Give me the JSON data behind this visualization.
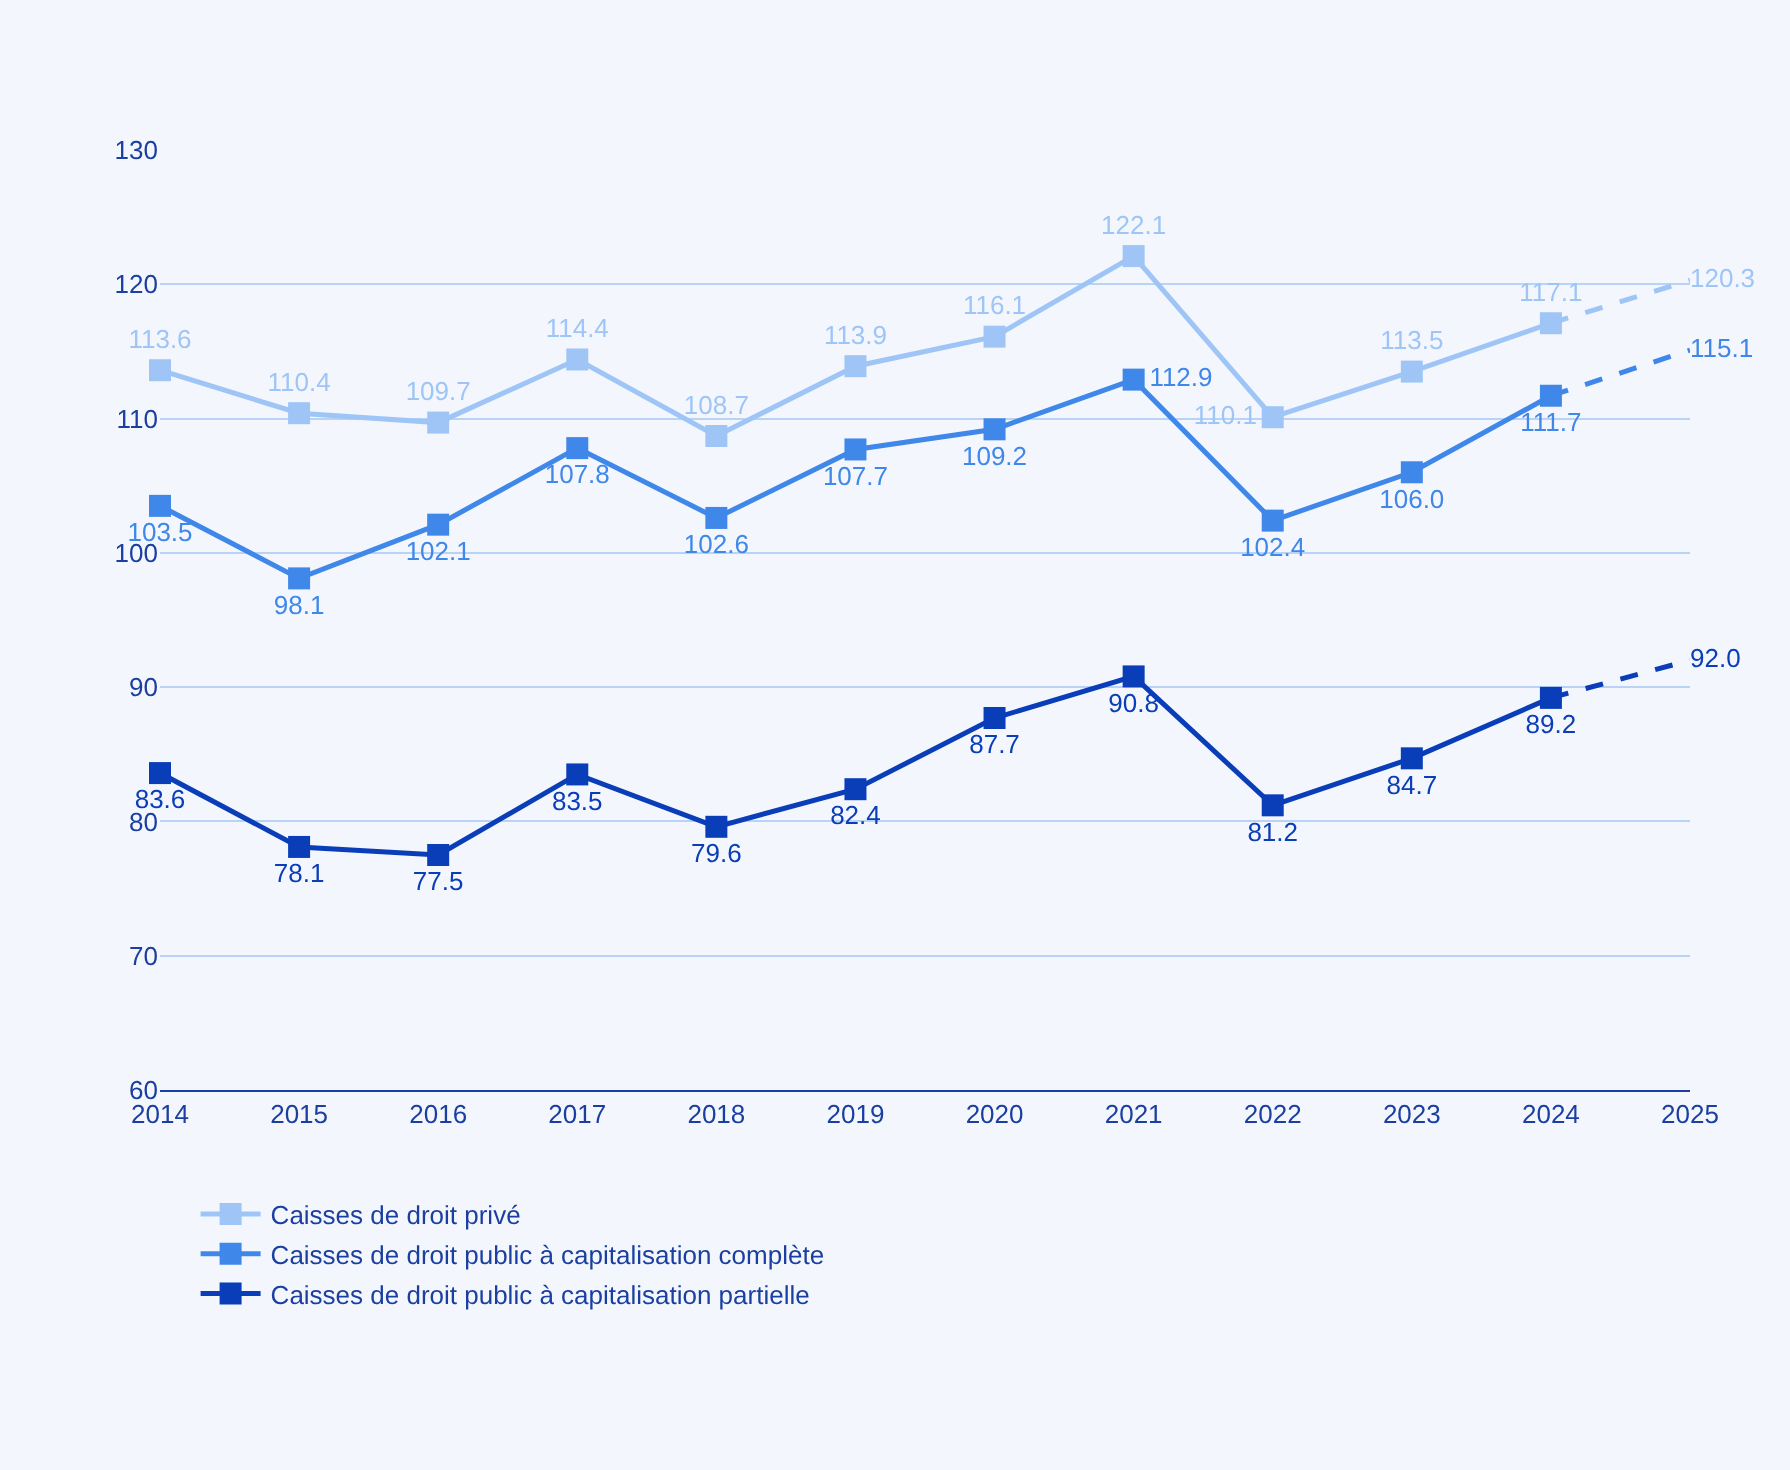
{
  "chart_data": {
    "type": "line",
    "x": [
      2014,
      2015,
      2016,
      2017,
      2018,
      2019,
      2020,
      2021,
      2022,
      2023,
      2024,
      2025
    ],
    "xlim": [
      2014,
      2025
    ],
    "xticks": [
      2014,
      2015,
      2016,
      2017,
      2018,
      2019,
      2020,
      2021,
      2022,
      2023,
      2024,
      2025
    ],
    "ylim": [
      60,
      130
    ],
    "yticks": [
      60,
      70,
      80,
      90,
      100,
      110,
      120,
      130
    ],
    "grid": "y",
    "legend": "bottom",
    "marker": "square",
    "series": [
      {
        "name": "Caisses de droit privé",
        "color": "#9ec5f6",
        "values": [
          113.6,
          110.4,
          109.7,
          114.4,
          108.7,
          113.9,
          116.1,
          122.1,
          110.1,
          113.5,
          117.1,
          null
        ],
        "value_labels": [
          "113.6",
          "110.4",
          "109.7",
          "114.4",
          "108.7",
          "113.9",
          "116.1",
          "122.1",
          "110.1",
          "113.5",
          "117.1",
          null
        ]
      },
      {
        "name": "Caisses de droit public à capitalisation complète",
        "color": "#3f87e8",
        "values": [
          103.5,
          98.1,
          102.1,
          107.8,
          102.6,
          107.7,
          109.2,
          112.9,
          102.4,
          106.0,
          111.7,
          null
        ],
        "value_labels": [
          "103.5",
          "98.1",
          "102.1",
          "107.8",
          "102.6",
          "107.7",
          "109.2",
          "112.9",
          "102.4",
          "106.0",
          "111.7",
          null
        ]
      },
      {
        "name": "Caisses de droit public à capitalisation partielle",
        "color": "#0a3db8",
        "values": [
          83.6,
          78.1,
          77.5,
          83.5,
          79.6,
          82.4,
          87.7,
          90.8,
          81.2,
          84.7,
          89.2,
          null
        ],
        "value_labels": [
          "83.6",
          "78.1",
          "77.5",
          "83.5",
          "79.6",
          "82.4",
          "87.7",
          "90.8",
          "81.2",
          "84.7",
          "89.2",
          null
        ]
      },
      {
        "color": "#9ec5f6",
        "line_style": "dashed",
        "marker": "none",
        "values": [
          null,
          null,
          null,
          null,
          null,
          null,
          null,
          null,
          null,
          null,
          117.1,
          120.3
        ],
        "value_labels": [
          null,
          null,
          null,
          null,
          null,
          null,
          null,
          null,
          null,
          null,
          null,
          "120.3"
        ]
      },
      {
        "color": "#3f87e8",
        "line_style": "dashed",
        "marker": "none",
        "values": [
          null,
          null,
          null,
          null,
          null,
          null,
          null,
          null,
          null,
          null,
          111.7,
          115.1
        ],
        "value_labels": [
          null,
          null,
          null,
          null,
          null,
          null,
          null,
          null,
          null,
          null,
          null,
          "115.1"
        ]
      },
      {
        "color": "#0a3db8",
        "line_style": "dashed",
        "marker": "none",
        "values": [
          null,
          null,
          null,
          null,
          null,
          null,
          null,
          null,
          null,
          null,
          89.2,
          92.0
        ],
        "value_labels": [
          null,
          null,
          null,
          null,
          null,
          null,
          null,
          null,
          null,
          null,
          null,
          "92.0"
        ]
      }
    ]
  }
}
